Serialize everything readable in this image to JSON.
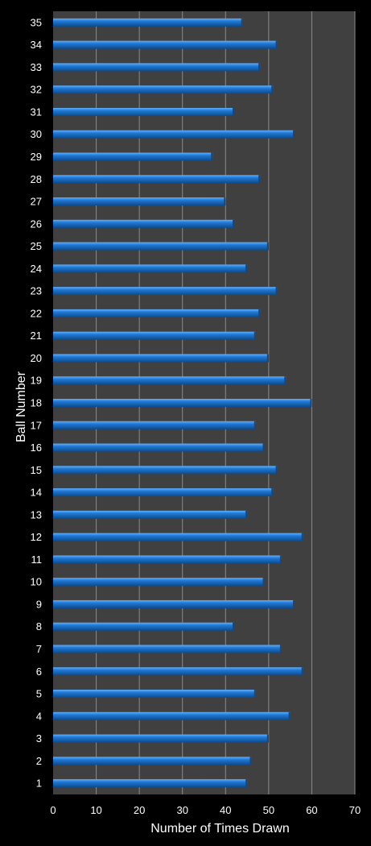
{
  "chart_data": {
    "type": "bar",
    "orientation": "horizontal",
    "title": "",
    "xlabel": "Number of Times Drawn",
    "ylabel": "Ball Number",
    "xlim": [
      0,
      70
    ],
    "xticks": [
      0,
      10,
      20,
      30,
      40,
      50,
      60,
      70
    ],
    "grid": true,
    "categories": [
      "1",
      "2",
      "3",
      "4",
      "5",
      "6",
      "7",
      "8",
      "9",
      "10",
      "11",
      "12",
      "13",
      "14",
      "15",
      "16",
      "17",
      "18",
      "19",
      "20",
      "21",
      "22",
      "23",
      "24",
      "25",
      "26",
      "27",
      "28",
      "29",
      "30",
      "31",
      "32",
      "33",
      "34",
      "35"
    ],
    "values": [
      45,
      46,
      50,
      55,
      47,
      58,
      53,
      42,
      56,
      49,
      53,
      58,
      45,
      51,
      52,
      49,
      47,
      60,
      54,
      50,
      47,
      48,
      52,
      45,
      50,
      42,
      40,
      48,
      37,
      56,
      42,
      51,
      48,
      52,
      44
    ],
    "colors": {
      "background": "#000000",
      "plot_area": "#404040",
      "grid": "#8a8a8a",
      "bar": "#1f78d4",
      "bar_highlight": "#5fb0ff",
      "bar_shadow": "#0d4a8c",
      "text": "#ffffff"
    }
  }
}
